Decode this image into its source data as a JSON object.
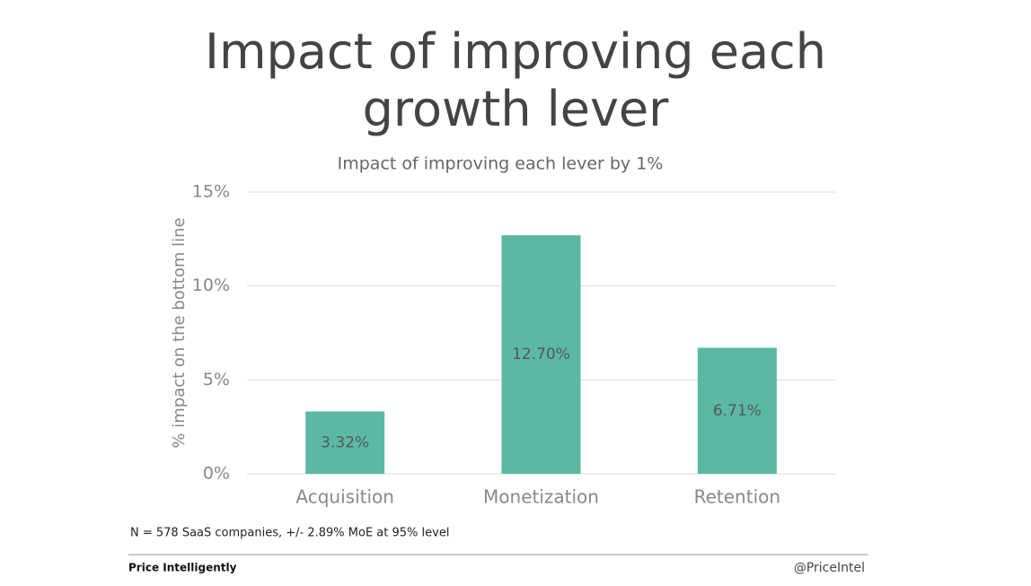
{
  "slide_title": "Impact of improving each growth lever",
  "chart_data": {
    "type": "bar",
    "title": "Impact of improving each lever by 1%",
    "y_label": "% impact on the bottom line",
    "categories": [
      "Acquisition",
      "Monetization",
      "Retention"
    ],
    "values": [
      3.32,
      12.7,
      6.71
    ],
    "value_labels": [
      "3.32%",
      "12.70%",
      "6.71%"
    ],
    "color": "#5bb9a3",
    "ylim": [
      0,
      15
    ],
    "yticks": [
      {
        "value": 0,
        "label": "0%"
      },
      {
        "value": 5,
        "label": "5%"
      },
      {
        "value": 10,
        "label": "10%"
      },
      {
        "value": 15,
        "label": "15%"
      }
    ],
    "grid": true
  },
  "footnote": "N = 578 SaaS companies, +/- 2.89% MoE at 95% level",
  "brand": "Price Intelligently",
  "handle": "@PriceIntel"
}
